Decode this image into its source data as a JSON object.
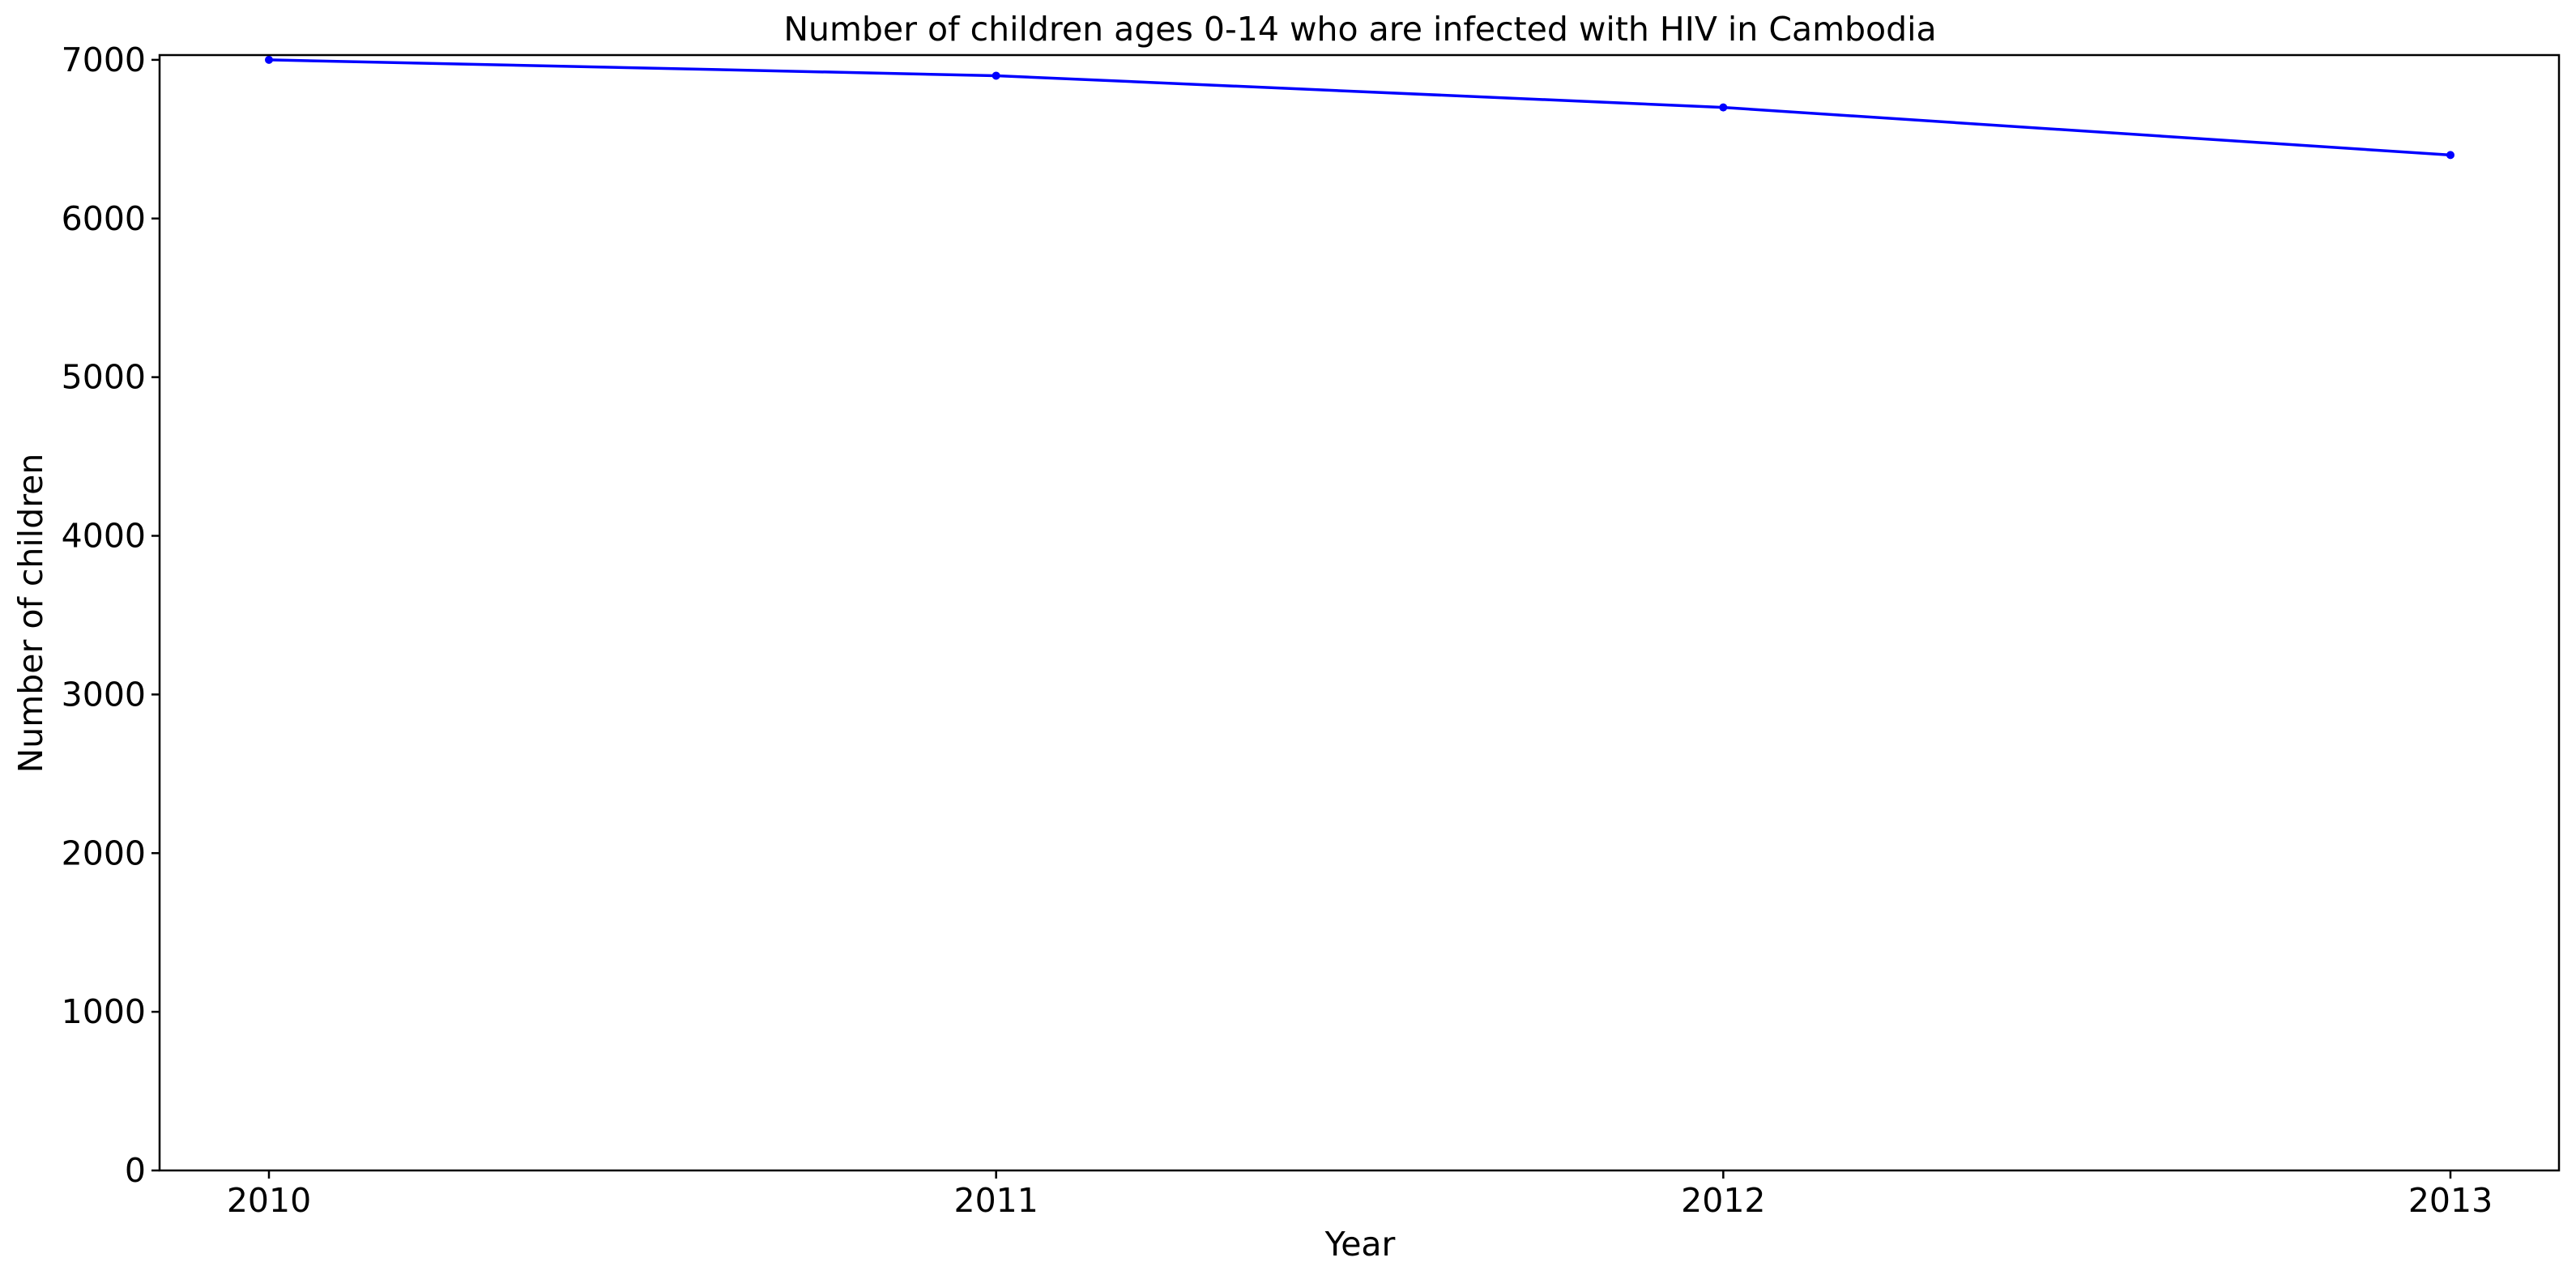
{
  "chart_data": {
    "type": "line",
    "title": "Number of children ages 0-14 who are infected with HIV in Cambodia",
    "xlabel": "Year",
    "ylabel": "Number of children",
    "x": [
      "2010",
      "2011",
      "2012",
      "2013"
    ],
    "series": [
      {
        "values": [
          7000,
          6900,
          6700,
          6400
        ],
        "color": "#0000ff"
      }
    ],
    "ylim": [
      0,
      7030
    ],
    "yticks": [
      0,
      1000,
      2000,
      3000,
      4000,
      5000,
      6000,
      7000
    ],
    "grid": false,
    "legend": "none",
    "marker": "circle"
  }
}
